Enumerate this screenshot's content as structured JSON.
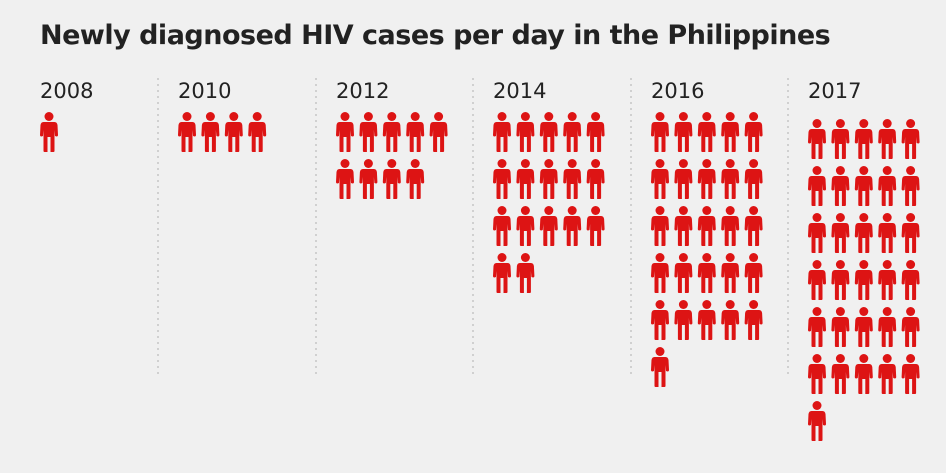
{
  "chart_data": {
    "type": "pictogram",
    "title": "Newly diagnosed HIV cases per day in the Philippines",
    "categories": [
      "2008",
      "2010",
      "2012",
      "2014",
      "2016",
      "2017"
    ],
    "values": [
      1,
      4,
      9,
      17,
      26,
      31
    ],
    "icon": "person-icon",
    "icons_per_row": 5,
    "icon_color": "#dd1414",
    "divider_style": "dotted"
  }
}
